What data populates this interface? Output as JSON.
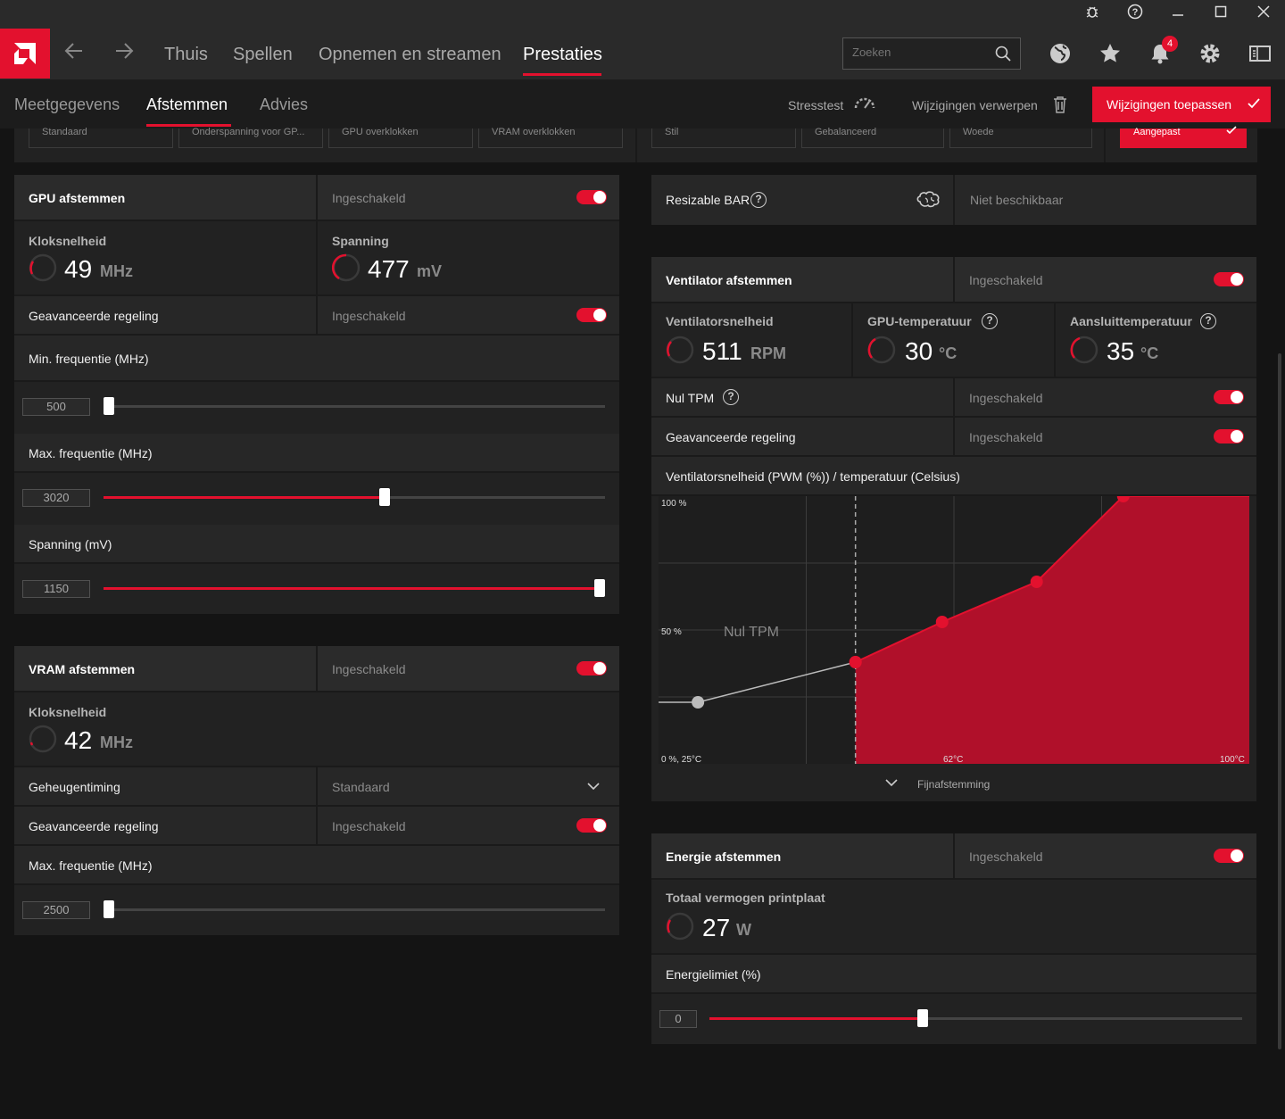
{
  "titlebar": {
    "icons": [
      "bug-icon",
      "help-icon",
      "minimize-icon",
      "maximize-icon",
      "close-icon"
    ]
  },
  "nav": {
    "tabs": [
      "Thuis",
      "Spellen",
      "Opnemen en streamen",
      "Prestaties"
    ],
    "active_tab": "Prestaties",
    "search_placeholder": "Zoeken",
    "notification_count": "4"
  },
  "subnav": {
    "tabs": [
      "Meetgegevens",
      "Afstemmen",
      "Advies"
    ],
    "active_tab": "Afstemmen",
    "stress_test": "Stresstest",
    "discard": "Wijzigingen verwerpen",
    "apply": "Wijzigingen toepassen"
  },
  "presets": {
    "gpu": [
      "Standaard",
      "Onderspanning voor GP...",
      "GPU overklokken",
      "VRAM overklokken"
    ],
    "fan": [
      "Stil",
      "Gebalanceerd",
      "Woede"
    ],
    "custom": "Aangepast"
  },
  "colors": {
    "accent": "#e3112e",
    "panel": "#222222",
    "row": "#272727",
    "background": "#141414"
  },
  "gpu_tuning": {
    "title": "GPU afstemmen",
    "status": "Ingeschakeld",
    "enabled": true,
    "clock": {
      "label": "Kloksnelheid",
      "value": "49",
      "unit": "MHz"
    },
    "voltage": {
      "label": "Spanning",
      "value": "477",
      "unit": "mV"
    },
    "advanced": {
      "label": "Geavanceerde regeling",
      "status": "Ingeschakeld",
      "enabled": true
    },
    "min_freq": {
      "label": "Min. frequentie (MHz)",
      "value": "500",
      "level": 0.0
    },
    "max_freq": {
      "label": "Max. frequentie (MHz)",
      "value": "3020",
      "level": 0.56
    },
    "voltage_mv": {
      "label": "Spanning (mV)",
      "value": "1150",
      "level": 1.0
    }
  },
  "vram_tuning": {
    "title": "VRAM afstemmen",
    "status": "Ingeschakeld",
    "enabled": true,
    "clock": {
      "label": "Kloksnelheid",
      "value": "42",
      "unit": "MHz"
    },
    "timing": {
      "label": "Geheugentiming",
      "value": "Standaard"
    },
    "advanced": {
      "label": "Geavanceerde regeling",
      "status": "Ingeschakeld",
      "enabled": true
    },
    "max_freq": {
      "label": "Max. frequentie (MHz)",
      "value": "2500",
      "level": 0.0
    }
  },
  "resizable_bar": {
    "label": "Resizable BAR",
    "status": "Niet beschikbaar"
  },
  "fan_tuning": {
    "title": "Ventilator afstemmen",
    "status": "Ingeschakeld",
    "enabled": true,
    "fan_speed": {
      "label": "Ventilatorsnelheid",
      "value": "511",
      "unit": "RPM"
    },
    "gpu_temp": {
      "label": "GPU-temperatuur",
      "value": "30",
      "unit": "°C"
    },
    "junction_temp": {
      "label": "Aansluittemperatuur",
      "value": "35",
      "unit": "°C"
    },
    "zero_rpm": {
      "label": "Nul TPM",
      "status": "Ingeschakeld",
      "enabled": true
    },
    "advanced": {
      "label": "Geavanceerde regeling",
      "status": "Ingeschakeld",
      "enabled": true
    },
    "fine_tune": "Fijnafstemming"
  },
  "chart_data": {
    "type": "area",
    "title": "Ventilatorsnelheid (PWM (%)) / temperatuur (Celsius)",
    "y_top_label": "100 %",
    "y_mid_label": "50 %",
    "origin_label": "0 %, 25°C",
    "x_mid_label": "62°C",
    "x_max_label": "100°C",
    "zero_rpm_label": "Nul TPM",
    "xlim": [
      25,
      100
    ],
    "ylim": [
      0,
      100
    ],
    "zero_rpm_threshold": 50,
    "grid": true,
    "points": [
      {
        "x": 30,
        "y": 23
      },
      {
        "x": 50,
        "y": 38
      },
      {
        "x": 61,
        "y": 53
      },
      {
        "x": 73,
        "y": 68
      },
      {
        "x": 84,
        "y": 100
      }
    ]
  },
  "power_tuning": {
    "title": "Energie afstemmen",
    "status": "Ingeschakeld",
    "enabled": true,
    "board_power": {
      "label": "Totaal vermogen printplaat",
      "value": "27",
      "unit": "W"
    },
    "limit": {
      "label": "Energielimiet (%)",
      "value": "0",
      "level": 0.4
    }
  }
}
